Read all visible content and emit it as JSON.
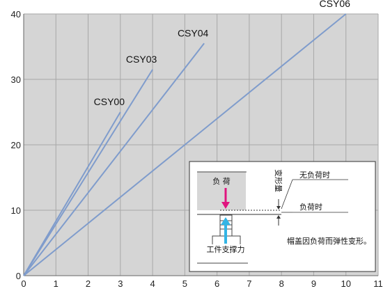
{
  "chart_data": {
    "type": "line",
    "xlim": [
      0,
      11
    ],
    "ylim": [
      0,
      40
    ],
    "x_ticks": [
      0,
      1,
      2,
      3,
      4,
      5,
      6,
      7,
      8,
      9,
      10,
      11
    ],
    "y_ticks": [
      0,
      10,
      20,
      30,
      40
    ],
    "grid": true,
    "legend": "labels at line ends",
    "colors": {
      "series": "#7f9ccc",
      "grid": "#a8a8a8",
      "plot_bg": "#d5d5d5"
    },
    "series": [
      {
        "name": "CSY00",
        "x": [
          0,
          3
        ],
        "y": [
          0,
          25
        ]
      },
      {
        "name": "CSY03",
        "x": [
          0,
          4
        ],
        "y": [
          0,
          31.5
        ]
      },
      {
        "name": "CSY04",
        "x": [
          0,
          5.6
        ],
        "y": [
          0,
          35.5
        ]
      },
      {
        "name": "CSY06",
        "x": [
          0,
          10
        ],
        "y": [
          0,
          40
        ]
      }
    ]
  },
  "inset": {
    "load_box": "负 荷",
    "deformation": "变形量",
    "no_load": "无负荷时",
    "under_load": "负荷时",
    "support": "工件支撑力",
    "note": "帽盖因负荷而弹性变形。",
    "colors": {
      "load_arrow": "#e0157f",
      "support_arrow": "#33b5e5",
      "load_box_bg": "#d7d7d7"
    }
  }
}
